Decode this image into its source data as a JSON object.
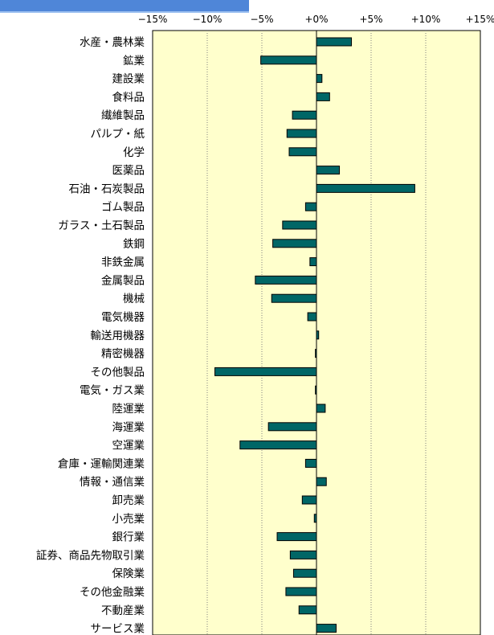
{
  "colors": {
    "plot_background": "#ffffcc",
    "bar_fill": "#006666",
    "bar_stroke": "#000000",
    "grid": "#808080",
    "banner": "#4f86d8"
  },
  "chart_data": {
    "type": "bar",
    "orientation": "horizontal",
    "title": "",
    "xlabel": "",
    "ylabel": "",
    "xlim": [
      -15,
      15
    ],
    "x_ticks": [
      -15,
      -10,
      -5,
      0,
      5,
      10,
      15
    ],
    "x_tick_labels": [
      "−15%",
      "−10%",
      "−5%",
      "+0%",
      "+5%",
      "+10%",
      "+15%"
    ],
    "grid": true,
    "legend": "none",
    "categories": [
      "水産・農林業",
      "鉱業",
      "建設業",
      "食料品",
      "繊維製品",
      "パルプ・紙",
      "化学",
      "医薬品",
      "石油・石炭製品",
      "ゴム製品",
      "ガラス・土石製品",
      "鉄鋼",
      "非鉄金属",
      "金属製品",
      "機械",
      "電気機器",
      "輸送用機器",
      "精密機器",
      "その他製品",
      "電気・ガス業",
      "陸運業",
      "海運業",
      "空運業",
      "倉庫・運輸関連業",
      "情報・通信業",
      "卸売業",
      "小売業",
      "銀行業",
      "証券、商品先物取引業",
      "保険業",
      "その他金融業",
      "不動産業",
      "サービス業"
    ],
    "values": [
      3.2,
      -5.1,
      0.5,
      1.2,
      -2.2,
      -2.7,
      -2.5,
      2.1,
      9.0,
      -1.0,
      -3.1,
      -4.0,
      -0.6,
      -5.6,
      -4.1,
      -0.8,
      0.2,
      -0.1,
      -9.3,
      -0.1,
      0.8,
      -4.4,
      -7.0,
      -1.0,
      0.9,
      -1.3,
      -0.2,
      -3.6,
      -2.4,
      -2.1,
      -2.8,
      -1.6,
      1.8
    ]
  }
}
